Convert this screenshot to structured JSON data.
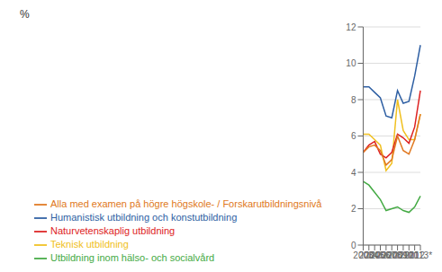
{
  "chart_data": {
    "type": "line",
    "ylabel": "%",
    "categories": [
      "2003",
      "2004",
      "2005",
      "2006",
      "2007",
      "2008",
      "2009",
      "2010",
      "2011",
      "2012",
      "2013*"
    ],
    "series": [
      {
        "name": "Humanistisk utbildning och konstutbildning",
        "color": "#2e5fa3",
        "values": [
          8.7,
          8.7,
          8.4,
          8.1,
          7.1,
          7.0,
          8.5,
          7.8,
          7.9,
          9.3,
          11.0
        ]
      },
      {
        "name": "Teknisk utbildning",
        "color": "#f0c020",
        "values": [
          6.1,
          6.1,
          5.8,
          5.5,
          4.1,
          4.5,
          8.0,
          6.3,
          5.8,
          5.8,
          7.2
        ]
      },
      {
        "name": "Naturvetenskaplig utbildning",
        "color": "#dd2222",
        "values": [
          5.1,
          5.5,
          5.7,
          5.0,
          4.8,
          5.1,
          6.1,
          5.9,
          5.6,
          6.5,
          8.5
        ]
      },
      {
        "name": "Alla med examen på högre högskole- / Forskarutbildningsnivå",
        "color": "#e07820",
        "values": [
          5.1,
          5.4,
          5.5,
          5.2,
          4.4,
          4.7,
          6.0,
          5.2,
          5.0,
          5.8,
          7.2
        ]
      },
      {
        "name": "Utbildning inom hälso- och socialvård",
        "color": "#44aa44",
        "values": [
          3.5,
          3.3,
          2.9,
          2.5,
          1.9,
          2.0,
          2.1,
          1.9,
          1.8,
          2.1,
          2.7
        ]
      }
    ],
    "ylim": [
      0,
      12
    ],
    "yticks": [
      0,
      2,
      4,
      6,
      8,
      10,
      12
    ],
    "grid": true,
    "legend": "bottom"
  }
}
